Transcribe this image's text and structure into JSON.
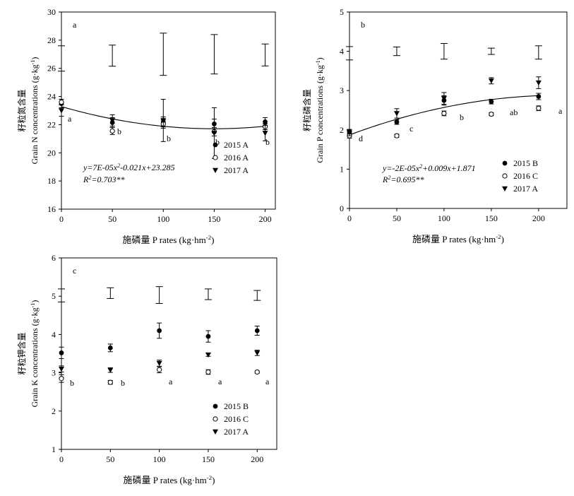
{
  "chart_data": [
    {
      "type": "scatter",
      "panel_label": "a",
      "xlabel": "施磷量 P rates (kg·hm⁻²)",
      "ylabel_cn": "籽粒氮含量",
      "ylabel_en": "Grain N concentrations (g·kg⁻¹)",
      "x_ticks": [
        0,
        50,
        100,
        150,
        200
      ],
      "y_ticks": [
        16,
        18,
        20,
        22,
        24,
        26,
        28,
        30
      ],
      "xlim": [
        0,
        210
      ],
      "ylim": [
        16,
        30
      ],
      "series": [
        {
          "name": "2015 A",
          "marker": "filled-circle",
          "x": [
            0,
            50,
            100,
            150,
            200
          ],
          "y": [
            23.5,
            22.15,
            22.2,
            22.05,
            22.2
          ],
          "err": [
            0.3,
            0.35,
            0.35,
            0.35,
            0.3
          ]
        },
        {
          "name": "2016 A",
          "marker": "open-circle",
          "x": [
            0,
            50,
            100,
            150,
            200
          ],
          "y": [
            23.6,
            21.55,
            22.05,
            21.5,
            21.85
          ],
          "err": [
            0.2,
            0.25,
            0.3,
            0.3,
            0.2
          ]
        },
        {
          "name": "2017 A",
          "marker": "filled-triangle",
          "x": [
            0,
            50,
            100,
            150,
            200
          ],
          "y": [
            23.0,
            22.3,
            22.3,
            21.4,
            21.4
          ],
          "err": [
            0.4,
            0.4,
            1.5,
            1.8,
            0.55
          ]
        }
      ],
      "letters": [
        "a",
        "b",
        "b",
        "b",
        "b"
      ],
      "error_bars": {
        "x": [
          0,
          50,
          100,
          150,
          200
        ],
        "y": [
          26.7,
          26.9,
          27.0,
          27.0,
          26.95
        ],
        "err": [
          0.9,
          0.75,
          1.5,
          1.4,
          0.78
        ]
      },
      "fit": {
        "coeffs": [
          7e-05,
          -0.021,
          23.285
        ],
        "equation": "y=7E-05x²-0.021x+23.285",
        "r2": "R²=0.703**"
      }
    },
    {
      "type": "scatter",
      "panel_label": "b",
      "xlabel": "施磷量 P rates (kg·hm⁻²)",
      "ylabel_cn": "籽粒磷含量",
      "ylabel_en": "Grain P concentrations (g·kg⁻¹)",
      "x_ticks": [
        0,
        50,
        100,
        150,
        200
      ],
      "y_ticks": [
        0,
        1,
        2,
        3,
        4,
        5
      ],
      "xlim": [
        0,
        230
      ],
      "ylim": [
        0,
        5
      ],
      "series": [
        {
          "name": "2015 B",
          "marker": "filled-circle",
          "x": [
            0,
            50,
            100,
            150,
            200
          ],
          "y": [
            1.95,
            2.2,
            2.75,
            2.72,
            2.85
          ],
          "err": [
            0.06,
            0.06,
            0.12,
            0.06,
            0.08
          ]
        },
        {
          "name": "2016 C",
          "marker": "open-circle",
          "x": [
            0,
            50,
            100,
            150,
            200
          ],
          "y": [
            1.85,
            1.85,
            2.42,
            2.4,
            2.55
          ],
          "err": [
            0.06,
            0.04,
            0.06,
            0.04,
            0.06
          ]
        },
        {
          "name": "2017 A",
          "marker": "filled-triangle",
          "x": [
            0,
            50,
            100,
            150,
            200
          ],
          "y": [
            1.93,
            2.42,
            2.8,
            3.25,
            3.2
          ],
          "err": [
            0.08,
            0.12,
            0.15,
            0.08,
            0.15
          ]
        }
      ],
      "letters": [
        "d",
        "c",
        "b",
        "ab",
        "a"
      ],
      "error_bars": {
        "x": [
          0,
          50,
          100,
          150,
          200
        ],
        "y": [
          3.95,
          4.0,
          4.0,
          4.0,
          3.97
        ],
        "err": [
          0.17,
          0.11,
          0.2,
          0.08,
          0.17
        ]
      },
      "fit": {
        "coeffs": [
          -2e-05,
          0.009,
          1.871
        ],
        "equation": "y=-2E-05x²+0.009x+1.871",
        "r2": "R²=0.695**"
      }
    },
    {
      "type": "scatter",
      "panel_label": "c",
      "xlabel": "施磷量 P rates (kg·hm⁻²)",
      "ylabel_cn": "籽粒钾含量",
      "ylabel_en": "Grain K concentrations (g·kg⁻¹)",
      "x_ticks": [
        0,
        50,
        100,
        150,
        200
      ],
      "y_ticks": [
        1,
        2,
        3,
        4,
        5,
        6
      ],
      "xlim": [
        0,
        220
      ],
      "ylim": [
        1,
        6
      ],
      "series": [
        {
          "name": "2015 B",
          "marker": "filled-circle",
          "x": [
            0,
            50,
            100,
            150,
            200
          ],
          "y": [
            3.52,
            3.65,
            4.1,
            3.95,
            4.1
          ],
          "err": [
            0.15,
            0.1,
            0.2,
            0.15,
            0.12
          ]
        },
        {
          "name": "2016 C",
          "marker": "open-circle",
          "x": [
            0,
            50,
            100,
            150,
            200
          ],
          "y": [
            2.85,
            2.75,
            3.08,
            3.02,
            3.02
          ],
          "err": [
            0.1,
            0.05,
            0.08,
            0.06,
            0.03
          ]
        },
        {
          "name": "2017 A",
          "marker": "filled-triangle",
          "x": [
            0,
            50,
            100,
            150,
            200
          ],
          "y": [
            3.1,
            3.07,
            3.25,
            3.47,
            3.52
          ],
          "err": [
            0.08,
            0.06,
            0.08,
            0.04,
            0.07
          ]
        }
      ],
      "letters": [
        "b",
        "b",
        "a",
        "a",
        "a"
      ],
      "error_bars": {
        "x": [
          0,
          50,
          100,
          150,
          200
        ],
        "y": [
          5.02,
          5.08,
          5.03,
          5.05,
          5.02
        ],
        "err": [
          0.17,
          0.14,
          0.22,
          0.14,
          0.13
        ]
      }
    }
  ]
}
